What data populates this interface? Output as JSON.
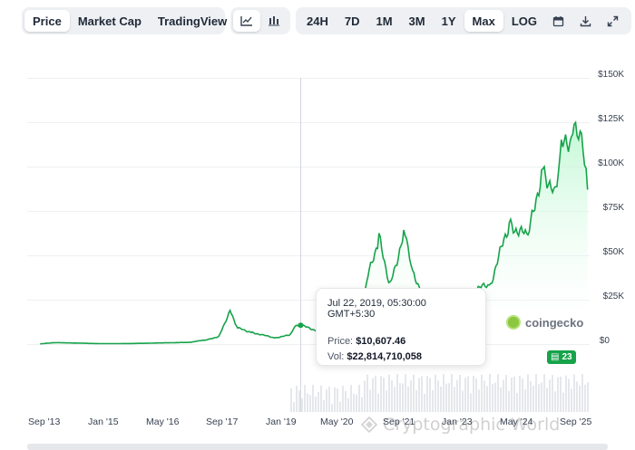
{
  "toolbar": {
    "view_tabs": [
      "Price",
      "Market Cap",
      "TradingView"
    ],
    "active_view": "Price",
    "chart_style_icons": [
      "line-chart-icon",
      "candlestick-chart-icon"
    ],
    "active_style": "line-chart-icon",
    "ranges": [
      "24H",
      "7D",
      "1M",
      "3M",
      "1Y",
      "Max"
    ],
    "active_range": "Max",
    "log_label": "LOG",
    "action_icons": [
      "calendar-icon",
      "download-icon",
      "expand-icon"
    ]
  },
  "tooltip": {
    "date": "Jul 22, 2019, 05:30:00 GMT+5:30",
    "price_label": "Price:",
    "price_value": "$10,607.46",
    "vol_label": "Vol:",
    "vol_value": "$22,814,710,058"
  },
  "brand": {
    "name": "coingecko"
  },
  "badge": {
    "text": "23"
  },
  "watermark": {
    "text": "Cryptographic World"
  },
  "colors": {
    "line": "#16a34a",
    "area_top": "#bbf7d0",
    "area_bottom": "#ffffff",
    "active_bg": "#ffffff",
    "seg_bg": "#eef0f3"
  },
  "chart_data": {
    "type": "area",
    "yticks": [
      "$150K",
      "$125K",
      "$100K",
      "$75K",
      "$50K",
      "$25K",
      "$0"
    ],
    "ylim": [
      0,
      150000
    ],
    "xticks": [
      "Sep '13",
      "Jan '15",
      "May '16",
      "Sep '17",
      "Jan '19",
      "May '20",
      "Sep '21",
      "Jan '23",
      "May '24",
      "Sep '25"
    ],
    "x": [
      "2013-09",
      "2014-01",
      "2014-06",
      "2015-01",
      "2015-06",
      "2016-01",
      "2016-06",
      "2017-01",
      "2017-06",
      "2017-09",
      "2017-12",
      "2018-02",
      "2018-06",
      "2018-12",
      "2019-04",
      "2019-06",
      "2019-07",
      "2020-03",
      "2020-10",
      "2021-01",
      "2021-04",
      "2021-07",
      "2021-11",
      "2022-01",
      "2022-06",
      "2022-11",
      "2023-03",
      "2023-10",
      "2024-03",
      "2024-08",
      "2024-12",
      "2025-03",
      "2025-05",
      "2025-08",
      "2025-10",
      "2025-12"
    ],
    "values": [
      130,
      800,
      600,
      250,
      250,
      420,
      670,
      950,
      2500,
      4300,
      19000,
      9000,
      6500,
      3500,
      5000,
      11000,
      10607,
      5000,
      11500,
      38000,
      60000,
      33000,
      65000,
      40000,
      20000,
      16500,
      28000,
      34000,
      68000,
      60000,
      100000,
      85000,
      110000,
      118000,
      121000,
      87000
    ],
    "cursor_x": "2019-07",
    "has_volume_bars": true
  }
}
